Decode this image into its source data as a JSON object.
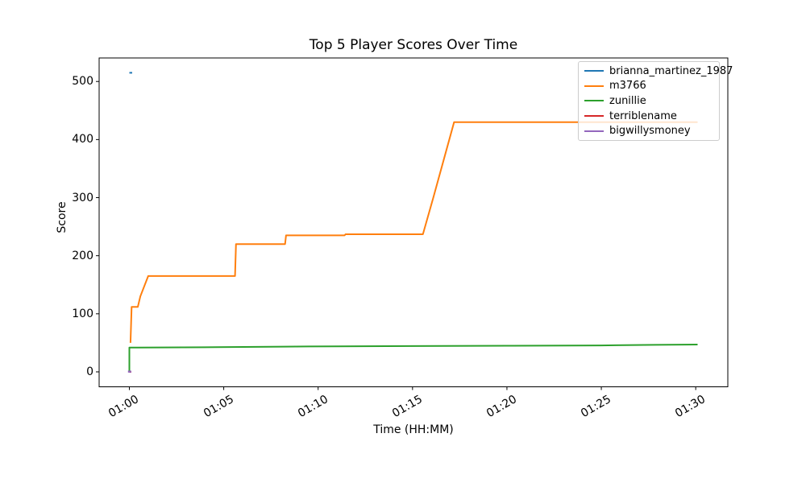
{
  "figure": {
    "background": "#ffffff",
    "spine_color": "#000000",
    "tick_color": "#000000"
  },
  "chart_data": {
    "type": "line",
    "title": "Top 5 Player Scores Over Time",
    "xlabel": "Time (HH:MM)",
    "ylabel": "Score",
    "x_unit": "minutes since 00:00, shown as HH:MM",
    "xlim": [
      58.4,
      91.7
    ],
    "ylim": [
      -25.7,
      540.5
    ],
    "grid": false,
    "legend_position": "upper right",
    "x_ticks": [
      {
        "value": 60,
        "label": "01:00"
      },
      {
        "value": 65,
        "label": "01:05"
      },
      {
        "value": 70,
        "label": "01:10"
      },
      {
        "value": 75,
        "label": "01:15"
      },
      {
        "value": 80,
        "label": "01:20"
      },
      {
        "value": 85,
        "label": "01:25"
      },
      {
        "value": 90,
        "label": "01:30"
      }
    ],
    "y_ticks": [
      {
        "value": 0,
        "label": "0"
      },
      {
        "value": 100,
        "label": "100"
      },
      {
        "value": 200,
        "label": "200"
      },
      {
        "value": 300,
        "label": "300"
      },
      {
        "value": 400,
        "label": "400"
      },
      {
        "value": 500,
        "label": "500"
      }
    ],
    "series": [
      {
        "name": "brianna_martinez_1987",
        "color": "#1f77b4",
        "linewidth": 2,
        "points": [
          [
            60.0,
            515
          ],
          [
            60.15,
            515
          ]
        ]
      },
      {
        "name": "m3766",
        "color": "#ff7f0e",
        "linewidth": 2,
        "points": [
          [
            60.06,
            50
          ],
          [
            60.12,
            112
          ],
          [
            60.45,
            112
          ],
          [
            60.58,
            130
          ],
          [
            61.0,
            165
          ],
          [
            65.6,
            165
          ],
          [
            65.65,
            220
          ],
          [
            68.25,
            220
          ],
          [
            68.3,
            235
          ],
          [
            71.4,
            235
          ],
          [
            71.45,
            237
          ],
          [
            75.55,
            237
          ],
          [
            76.1,
            300
          ],
          [
            77.2,
            430
          ],
          [
            90.1,
            430
          ]
        ]
      },
      {
        "name": "zunillie",
        "color": "#2ca02c",
        "linewidth": 2,
        "points": [
          [
            60.0,
            0
          ],
          [
            60.0,
            42
          ],
          [
            60.5,
            42
          ],
          [
            64.6,
            42.5
          ],
          [
            68.2,
            43.5
          ],
          [
            71.0,
            44
          ],
          [
            74.9,
            44.5
          ],
          [
            80.0,
            45
          ],
          [
            85.0,
            45.5
          ],
          [
            87.8,
            46.5
          ],
          [
            90.1,
            47
          ]
        ]
      },
      {
        "name": "terriblename",
        "color": "#d62728",
        "linewidth": 2,
        "points": [
          [
            60.0,
            0
          ],
          [
            60.1,
            0
          ]
        ]
      },
      {
        "name": "bigwillysmoney",
        "color": "#9467bd",
        "linewidth": 2.5,
        "points": [
          [
            59.93,
            0.5
          ],
          [
            60.1,
            0.5
          ]
        ]
      }
    ]
  }
}
